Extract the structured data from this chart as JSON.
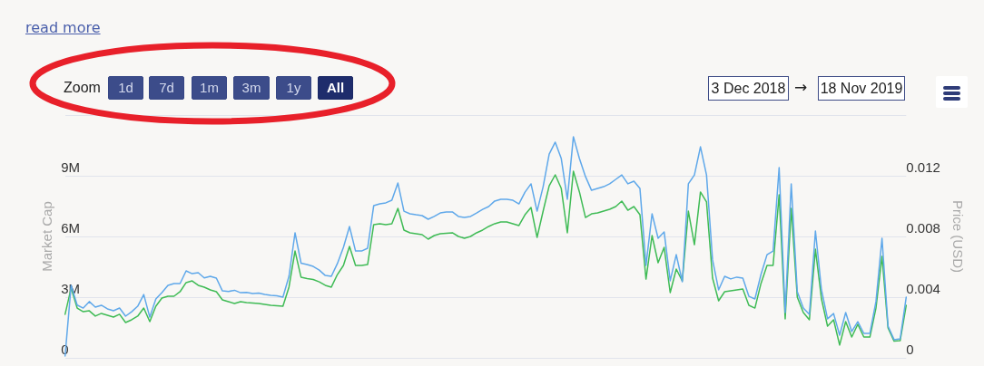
{
  "chart_data": {
    "type": "line",
    "categories": [
      null,
      null,
      null,
      null,
      null,
      null,
      null,
      null,
      null,
      null,
      null,
      null,
      null,
      null,
      null,
      null,
      null,
      null,
      null,
      null,
      null,
      null,
      null,
      null,
      null,
      null,
      null,
      null,
      null,
      null,
      null,
      null,
      null,
      null,
      null,
      null,
      null,
      null,
      null,
      null,
      null,
      null,
      null,
      null,
      null,
      null,
      null,
      null,
      null,
      null,
      null,
      null,
      null,
      null,
      null,
      null,
      null,
      null,
      null,
      null,
      null,
      null,
      null,
      null,
      null,
      null,
      null,
      null,
      null,
      null,
      null,
      null,
      null,
      null,
      null,
      null,
      null,
      null,
      null,
      null,
      null,
      null,
      null,
      null,
      null,
      null,
      null,
      null,
      null,
      null,
      null,
      null,
      null,
      null,
      null,
      null,
      null,
      null,
      null,
      null,
      null,
      null,
      null,
      null,
      null,
      null,
      null,
      null,
      null,
      null,
      null,
      null,
      null,
      null,
      null,
      null,
      null,
      null,
      null,
      null,
      null,
      null,
      null,
      null,
      null,
      null,
      null,
      null,
      null,
      null,
      null,
      null,
      null,
      null,
      null,
      null,
      null,
      null,
      null,
      null
    ],
    "series": [
      {
        "color": "#5fa8ea",
        "values": [
          90000,
          3580000,
          2610000,
          2460000,
          2780000,
          2510000,
          2600000,
          2420000,
          2330000,
          2460000,
          2060000,
          2280000,
          2550000,
          3130000,
          2010000,
          2910000,
          3220000,
          3580000,
          3670000,
          3670000,
          4300000,
          4160000,
          4210000,
          3950000,
          4030000,
          3940000,
          3310000,
          3280000,
          3340000,
          3220000,
          3240000,
          3180000,
          3200000,
          3130000,
          3090000,
          3070000,
          3000000,
          4030000,
          6180000,
          4680000,
          4610000,
          4520000,
          4340000,
          4070000,
          4030000,
          4660000,
          5460000,
          6490000,
          5280000,
          5280000,
          5420000,
          7520000,
          7610000,
          7660000,
          7790000,
          8640000,
          7250000,
          7120000,
          7070000,
          7030000,
          6850000,
          6990000,
          7160000,
          7210000,
          7210000,
          6990000,
          6940000,
          6990000,
          7160000,
          7340000,
          7480000,
          7750000,
          7840000,
          7840000,
          7790000,
          7610000,
          8190000,
          8600000,
          7250000,
          8460000,
          10070000,
          10660000,
          9850000,
          7840000,
          10930000,
          9850000,
          8960000,
          8280000,
          8370000,
          8460000,
          8600000,
          8820000,
          9040000,
          8600000,
          8730000,
          8370000,
          4570000,
          7120000,
          5910000,
          6220000,
          3810000,
          5100000,
          3760000,
          8600000,
          9040000,
          10430000,
          9040000,
          4840000,
          3360000,
          4030000,
          3900000,
          3990000,
          3940000,
          3040000,
          2910000,
          4120000,
          5100000,
          5280000,
          9400000,
          2240000,
          8600000,
          3270000,
          2460000,
          2150000,
          6270000,
          3360000,
          1930000,
          2190000,
          1120000,
          2240000,
          1300000,
          1790000,
          1210000,
          1210000,
          2780000,
          5910000,
          1570000,
          900000,
          940000,
          3000000
        ]
      },
      {
        "color": "#3fbb55",
        "axis": "y2",
        "values": [
          0.00287,
          0.0046,
          0.00328,
          0.00304,
          0.0031,
          0.00275,
          0.00293,
          0.00281,
          0.00269,
          0.00287,
          0.00233,
          0.00251,
          0.00275,
          0.00328,
          0.00239,
          0.0034,
          0.00394,
          0.00406,
          0.00406,
          0.00436,
          0.00496,
          0.00507,
          0.00478,
          0.00466,
          0.00448,
          0.00436,
          0.00382,
          0.0037,
          0.00358,
          0.0037,
          0.00364,
          0.00361,
          0.00358,
          0.00352,
          0.00346,
          0.00343,
          0.0034,
          0.00466,
          0.00704,
          0.00531,
          0.00522,
          0.00516,
          0.00501,
          0.00478,
          0.00466,
          0.00549,
          0.00609,
          0.00734,
          0.00609,
          0.00609,
          0.00615,
          0.00878,
          0.00884,
          0.00878,
          0.00884,
          0.00985,
          0.00842,
          0.00824,
          0.00818,
          0.00812,
          0.00782,
          0.00806,
          0.00818,
          0.00821,
          0.00824,
          0.008,
          0.00788,
          0.008,
          0.00824,
          0.00842,
          0.00866,
          0.00884,
          0.00896,
          0.00896,
          0.00884,
          0.00872,
          0.00943,
          0.00991,
          0.00794,
          0.00967,
          0.01134,
          0.01206,
          0.01116,
          0.00824,
          0.0123,
          0.01093,
          0.00925,
          0.00949,
          0.00955,
          0.00967,
          0.00979,
          0.00997,
          0.01033,
          0.00973,
          0.00997,
          0.00943,
          0.00519,
          0.00806,
          0.00627,
          0.00728,
          0.0043,
          0.00585,
          0.00507,
          0.00967,
          0.00746,
          0.01093,
          0.01027,
          0.00525,
          0.00376,
          0.00436,
          0.00442,
          0.00448,
          0.00454,
          0.00346,
          0.00328,
          0.0049,
          0.00609,
          0.00609,
          0.01075,
          0.00257,
          0.00985,
          0.004,
          0.00299,
          0.00251,
          0.00716,
          0.00388,
          0.00209,
          0.00251,
          0.00084,
          0.00239,
          0.00137,
          0.00221,
          0.00137,
          0.00137,
          0.00328,
          0.00669,
          0.00197,
          0.0011,
          0.00113,
          0.00346
        ]
      }
    ],
    "ylabel": "Market Cap",
    "y2label": "Price (USD)",
    "ylim": [
      0,
      12000000
    ],
    "yticks": [
      0,
      {
        "value": 3000000,
        "label": "3M"
      },
      {
        "value": 6000000,
        "label": "6M"
      },
      {
        "value": 9000000,
        "label": "9M"
      },
      {
        "value": 12000000,
        "label": null
      }
    ],
    "y2lim": [
      0,
      0.016
    ],
    "y2ticks": [
      0,
      0.004,
      0.008,
      0.012
    ],
    "grid": "y",
    "legend": false,
    "marker": "none",
    "line_style": "solid",
    "tick_labels": "y",
    "annotations": [
      "read more",
      "Zoom",
      "1d",
      "7d",
      "1m",
      "3m",
      "1y",
      "All",
      "3 Dec 2018",
      "→",
      "18 Nov 2019"
    ]
  }
}
